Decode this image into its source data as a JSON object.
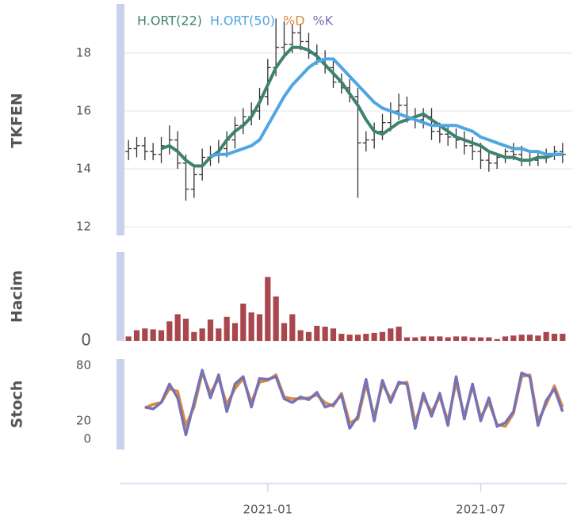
{
  "chart_data": [
    {
      "type": "ohlc",
      "ylabel": "TKFEN",
      "categories": [
        null,
        null,
        null,
        null,
        null,
        null,
        null,
        null,
        null,
        null,
        null,
        null,
        null,
        null,
        null,
        null,
        null,
        "2021-01",
        null,
        null,
        null,
        null,
        null,
        null,
        null,
        null,
        null,
        null,
        null,
        null,
        null,
        null,
        null,
        null,
        null,
        null,
        null,
        null,
        null,
        null,
        null,
        null,
        null,
        "2021-07",
        null,
        null,
        null,
        null,
        null,
        null,
        null,
        null,
        null,
        null
      ],
      "open": [
        14.6,
        14.7,
        14.8,
        14.6,
        14.5,
        14.8,
        15.0,
        14.2,
        13.3,
        13.8,
        14.4,
        14.5,
        14.7,
        15.0,
        15.5,
        15.8,
        16.0,
        16.5,
        17.5,
        18.2,
        18.3,
        18.7,
        18.4,
        18.0,
        17.8,
        17.5,
        17.0,
        16.8,
        16.5,
        14.9,
        15.0,
        15.3,
        15.6,
        16.0,
        16.2,
        15.8,
        15.7,
        15.8,
        15.3,
        15.2,
        15.1,
        15.0,
        14.8,
        14.6,
        14.3,
        14.2,
        14.4,
        14.6,
        14.5,
        14.3,
        14.3,
        14.4,
        14.5,
        14.6
      ],
      "high": [
        15.0,
        15.1,
        15.1,
        14.9,
        15.1,
        15.5,
        15.3,
        14.5,
        14.1,
        14.7,
        14.8,
        15.0,
        15.3,
        15.8,
        16.1,
        16.3,
        16.8,
        17.8,
        19.2,
        19.1,
        19.0,
        19.0,
        18.7,
        18.3,
        18.1,
        17.8,
        17.3,
        17.1,
        16.8,
        15.3,
        15.6,
        15.9,
        16.3,
        16.6,
        16.5,
        16.1,
        16.1,
        16.1,
        15.6,
        15.5,
        15.4,
        15.3,
        15.1,
        14.9,
        14.6,
        14.5,
        14.7,
        14.9,
        14.8,
        14.6,
        14.6,
        14.7,
        14.8,
        14.9
      ],
      "low": [
        14.3,
        14.4,
        14.3,
        14.3,
        14.2,
        14.5,
        14.0,
        12.9,
        13.0,
        13.6,
        14.1,
        14.2,
        14.4,
        14.7,
        15.2,
        15.5,
        15.7,
        16.2,
        17.2,
        17.9,
        18.0,
        18.1,
        17.8,
        17.6,
        17.3,
        16.8,
        16.6,
        16.3,
        13.0,
        14.6,
        14.7,
        15.0,
        15.3,
        15.7,
        15.6,
        15.4,
        15.4,
        15.0,
        14.9,
        14.8,
        14.7,
        14.5,
        14.3,
        14.0,
        13.9,
        14.0,
        14.2,
        14.3,
        14.1,
        14.1,
        14.1,
        14.2,
        14.3,
        14.2
      ],
      "close": [
        14.7,
        14.8,
        14.6,
        14.5,
        14.8,
        15.0,
        14.2,
        13.3,
        13.8,
        14.4,
        14.5,
        14.7,
        15.0,
        15.5,
        15.8,
        16.0,
        16.5,
        17.5,
        18.2,
        18.3,
        18.7,
        18.4,
        18.0,
        17.8,
        17.5,
        17.0,
        16.8,
        16.5,
        14.9,
        15.0,
        15.3,
        15.6,
        16.0,
        16.2,
        15.8,
        15.7,
        15.8,
        15.3,
        15.2,
        15.1,
        15.0,
        14.8,
        14.6,
        14.3,
        14.2,
        14.4,
        14.6,
        14.5,
        14.3,
        14.3,
        14.4,
        14.5,
        14.6,
        14.5
      ],
      "bar_color": "#333333",
      "series": [
        {
          "name": "H.ORT(22)",
          "color": "#3f8170",
          "values": [
            null,
            null,
            null,
            null,
            14.7,
            14.8,
            14.6,
            14.3,
            14.1,
            14.1,
            14.4,
            14.6,
            15.0,
            15.3,
            15.5,
            15.8,
            16.3,
            16.9,
            17.5,
            17.9,
            18.2,
            18.2,
            18.1,
            17.9,
            17.6,
            17.3,
            17.0,
            16.6,
            16.2,
            15.7,
            15.3,
            15.2,
            15.4,
            15.6,
            15.7,
            15.8,
            15.9,
            15.7,
            15.5,
            15.3,
            15.1,
            15.0,
            14.9,
            14.8,
            14.6,
            14.5,
            14.4,
            14.4,
            14.3,
            14.3,
            14.4,
            14.4,
            14.5,
            14.5
          ]
        },
        {
          "name": "H.ORT(50)",
          "color": "#4ea6e2",
          "values": [
            null,
            null,
            null,
            null,
            null,
            null,
            null,
            null,
            null,
            null,
            14.45,
            14.5,
            14.5,
            14.6,
            14.7,
            14.8,
            15.0,
            15.5,
            16.0,
            16.5,
            16.9,
            17.2,
            17.5,
            17.7,
            17.8,
            17.8,
            17.5,
            17.2,
            16.9,
            16.6,
            16.3,
            16.1,
            16.0,
            15.9,
            15.8,
            15.7,
            15.6,
            15.5,
            15.5,
            15.5,
            15.5,
            15.4,
            15.3,
            15.1,
            15.0,
            14.9,
            14.8,
            14.7,
            14.7,
            14.6,
            14.6,
            14.5,
            14.5,
            14.5
          ]
        }
      ],
      "ylim": [
        11.7,
        19.7
      ],
      "yticks": [
        12,
        14,
        16,
        18
      ],
      "grid": true
    },
    {
      "type": "bar",
      "ylabel": "Hacim",
      "color": "#a8474d",
      "values": [
        5,
        12,
        14,
        13,
        12,
        22,
        30,
        25,
        10,
        14,
        24,
        14,
        27,
        20,
        42,
        32,
        30,
        72,
        50,
        20,
        30,
        12,
        10,
        17,
        16,
        14,
        8,
        7,
        7,
        8,
        9,
        10,
        14,
        16,
        4,
        4,
        5,
        5,
        5,
        4,
        5,
        5,
        4,
        4,
        4,
        2,
        5,
        6,
        7,
        7,
        6,
        10,
        8,
        8
      ],
      "ylim": [
        0,
        100
      ],
      "yticks": [
        0
      ],
      "grid": false
    },
    {
      "type": "line",
      "ylabel": "Stoch",
      "series": [
        {
          "name": "%D",
          "color": "#d98b3e",
          "values": [
            null,
            null,
            34,
            38,
            40,
            55,
            52,
            15,
            35,
            72,
            50,
            66,
            38,
            55,
            66,
            40,
            62,
            64,
            70,
            46,
            44,
            44,
            45,
            48,
            40,
            36,
            50,
            18,
            22,
            60,
            25,
            60,
            44,
            60,
            62,
            18,
            45,
            30,
            46,
            20,
            62,
            25,
            58,
            24,
            40,
            16,
            14,
            28,
            68,
            70,
            20,
            38,
            58,
            35
          ]
        },
        {
          "name": "%K",
          "color": "#7772b6",
          "values": [
            null,
            null,
            35,
            33,
            40,
            60,
            45,
            5,
            40,
            75,
            45,
            70,
            30,
            60,
            68,
            35,
            66,
            65,
            68,
            44,
            40,
            46,
            43,
            51,
            35,
            38,
            48,
            12,
            25,
            65,
            20,
            64,
            40,
            62,
            60,
            12,
            50,
            25,
            50,
            15,
            68,
            22,
            60,
            20,
            45,
            14,
            18,
            30,
            72,
            68,
            15,
            42,
            55,
            30
          ]
        }
      ],
      "ylim": [
        -11,
        87
      ],
      "yticks": [
        0,
        20,
        80
      ],
      "grid": false
    }
  ]
}
